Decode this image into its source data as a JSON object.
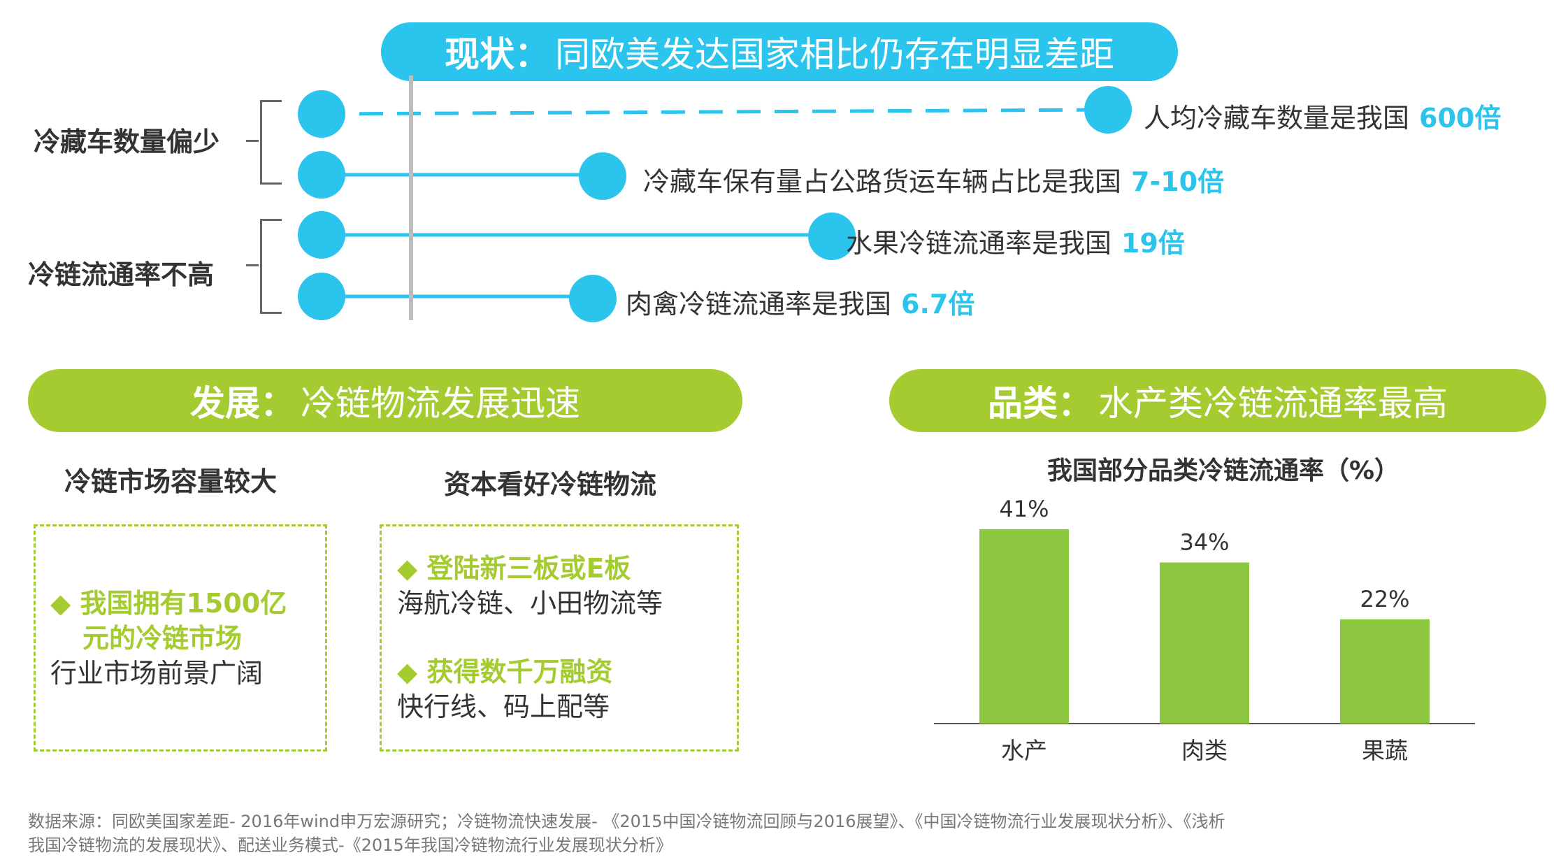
{
  "colors": {
    "blue": "#2bc4ec",
    "green": "#a4cb2f",
    "bar": "#8dc63f"
  },
  "status": {
    "title_bold": "现状：",
    "title_rest": "同欧美发达国家相比仍存在明显差距",
    "groups": [
      {
        "label": "冷藏车数量偏少"
      },
      {
        "label": "冷链流通率不高"
      }
    ],
    "rows": [
      {
        "text": "人均冷藏车数量是我国",
        "value": "600倍"
      },
      {
        "text": "冷藏车保有量占公路货运车辆占比是我国",
        "value": "7-10倍"
      },
      {
        "text": "水果冷链流通率是我国",
        "value": "19倍"
      },
      {
        "text": "肉禽冷链流通率是我国",
        "value": "6.7倍"
      }
    ]
  },
  "development": {
    "title_bold": "发展：",
    "title_rest": "冷链物流发展迅速",
    "market": {
      "heading": "冷链市场容量较大",
      "bullet_line1": "◆ 我国拥有1500亿",
      "bullet_line2": "元的冷链市场",
      "text": "行业市场前景广阔"
    },
    "capital": {
      "heading": "资本看好冷链物流",
      "bullet1": "◆ 登陆新三板或E板",
      "text1": "海航冷链、小田物流等",
      "bullet2": "◆ 获得数千万融资",
      "text2": "快行线、码上配等"
    }
  },
  "category": {
    "title_bold": "品类：",
    "title_rest": "水产类冷链流通率最高"
  },
  "chart_data": {
    "type": "bar",
    "title": "我国部分品类冷链流通率（%）",
    "categories": [
      "水产",
      "肉类",
      "果蔬"
    ],
    "values": [
      41,
      34,
      22
    ],
    "labels": [
      "41%",
      "34%",
      "22%"
    ],
    "ylim": [
      0,
      45
    ]
  },
  "footer": {
    "line1": "数据来源：同欧美国家差距- 2016年wind申万宏源研究；冷链物流快速发展- 《2015中国冷链物流回顾与2016展望》、《中国冷链物流行业发展现状分析》、《浅析",
    "line2": "我国冷链物流的发展现状》、配送业务模式-《2015年我国冷链物流行业发展现状分析》"
  }
}
